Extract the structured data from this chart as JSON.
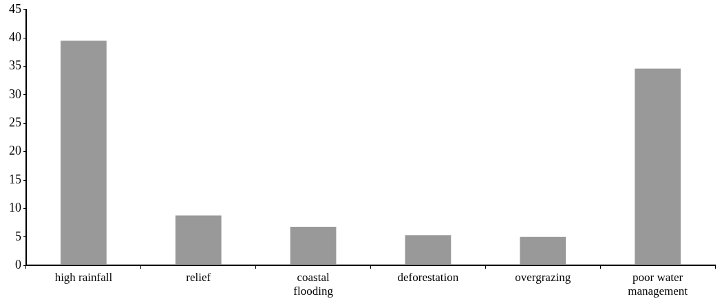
{
  "chart_data": {
    "type": "bar",
    "categories": [
      "high rainfall",
      "relief",
      "coastal flooding",
      "deforestation",
      "overgrazing",
      "poor water management"
    ],
    "values": [
      39.5,
      8.8,
      6.8,
      5.3,
      5.0,
      34.6
    ],
    "color": "#999999",
    "ylim": [
      0,
      45
    ],
    "yticks": [
      0,
      5,
      10,
      15,
      20,
      25,
      30,
      35,
      40,
      45
    ],
    "grid": false,
    "legend": false
  }
}
